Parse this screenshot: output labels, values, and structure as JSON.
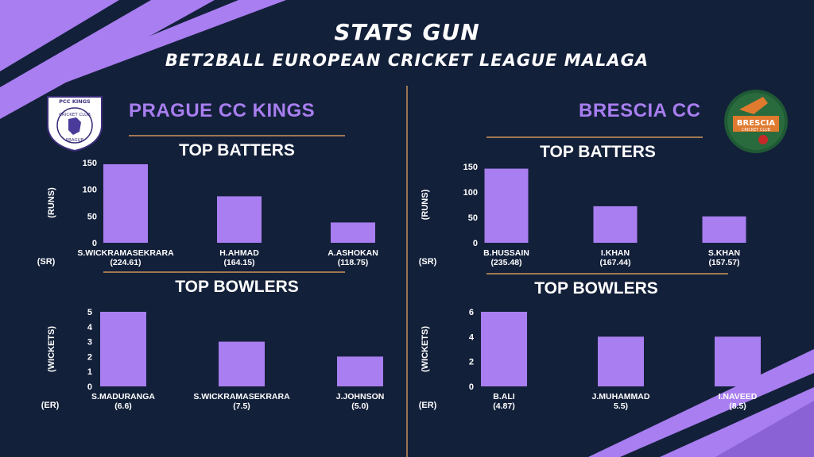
{
  "header": {
    "title": "STATS GUN",
    "subtitle": "BET2BALL EUROPEAN CRICKET LEAGUE MALAGA"
  },
  "colors": {
    "background": "#13203a",
    "accent": "#a87ef0",
    "bar": "#a87ef0",
    "divider": "#9a7650",
    "text": "#ffffff"
  },
  "teams": {
    "left": {
      "name": "PRAGUE CC KINGS",
      "logo_text": "PCC KINGS",
      "logo_ring": "CRICKET CLUB",
      "logo_city": "PRAGUE"
    },
    "right": {
      "name": "BRESCIA CC",
      "logo_text": "BRESCIA",
      "logo_sub": "CRICKET CLUB"
    }
  },
  "sections": {
    "batters": "TOP BATTERS",
    "bowlers": "TOP BOWLERS"
  },
  "chart_data": [
    {
      "type": "bar",
      "team": "PRAGUE CC KINGS",
      "title": "TOP BATTERS",
      "ylabel": "(RUNS)",
      "extra_label": "(SR)",
      "categories": [
        "S.WICKRAMASEKRARA",
        "H.AHMAD",
        "A.ASHOKAN"
      ],
      "secondary": [
        "(224.61)",
        "(164.15)",
        "(118.75)"
      ],
      "values": [
        147,
        87,
        38
      ],
      "yticks": [
        0,
        50,
        100,
        150
      ],
      "ylim": [
        0,
        150
      ]
    },
    {
      "type": "bar",
      "team": "PRAGUE CC KINGS",
      "title": "TOP BOWLERS",
      "ylabel": "(WICKETS)",
      "extra_label": "(ER)",
      "categories": [
        "S.MADURANGA",
        "S.WICKRAMASEKRARA",
        "J.JOHNSON"
      ],
      "secondary": [
        "(6.6)",
        "(7.5)",
        "(5.0)"
      ],
      "values": [
        5,
        3,
        2
      ],
      "yticks": [
        0,
        1,
        2,
        3,
        4,
        5
      ],
      "ylim": [
        0,
        5
      ]
    },
    {
      "type": "bar",
      "team": "BRESCIA CC",
      "title": "TOP BATTERS",
      "ylabel": "(RUNS)",
      "extra_label": "(SR)",
      "categories": [
        "B.HUSSAIN",
        "I.KHAN",
        "S.KHAN"
      ],
      "secondary": [
        "(235.48)",
        "(167.44)",
        "(157.57)"
      ],
      "values": [
        146,
        72,
        52
      ],
      "yticks": [
        0,
        50,
        100,
        150
      ],
      "ylim": [
        0,
        150
      ]
    },
    {
      "type": "bar",
      "team": "BRESCIA CC",
      "title": "TOP BOWLERS",
      "ylabel": "(WICKETS)",
      "extra_label": "(ER)",
      "categories": [
        "B.ALI",
        "J.MUHAMMAD",
        "I.NAVEED"
      ],
      "secondary": [
        "(4.87)",
        "5.5)",
        "(8.5)"
      ],
      "values": [
        6,
        4,
        4
      ],
      "yticks": [
        0,
        2,
        4,
        6
      ],
      "ylim": [
        0,
        6
      ]
    }
  ]
}
